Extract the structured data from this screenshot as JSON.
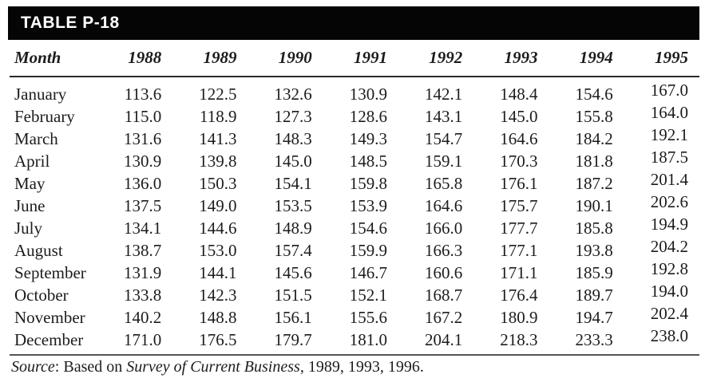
{
  "table": {
    "title": "TABLE P-18",
    "columns": [
      "Month",
      "1988",
      "1989",
      "1990",
      "1991",
      "1992",
      "1993",
      "1994",
      "1995"
    ],
    "rows": [
      [
        "January",
        "113.6",
        "122.5",
        "132.6",
        "130.9",
        "142.1",
        "148.4",
        "154.6",
        "167.0"
      ],
      [
        "February",
        "115.0",
        "118.9",
        "127.3",
        "128.6",
        "143.1",
        "145.0",
        "155.8",
        "164.0"
      ],
      [
        "March",
        "131.6",
        "141.3",
        "148.3",
        "149.3",
        "154.7",
        "164.6",
        "184.2",
        "192.1"
      ],
      [
        "April",
        "130.9",
        "139.8",
        "145.0",
        "148.5",
        "159.1",
        "170.3",
        "181.8",
        "187.5"
      ],
      [
        "May",
        "136.0",
        "150.3",
        "154.1",
        "159.8",
        "165.8",
        "176.1",
        "187.2",
        "201.4"
      ],
      [
        "June",
        "137.5",
        "149.0",
        "153.5",
        "153.9",
        "164.6",
        "175.7",
        "190.1",
        "202.6"
      ],
      [
        "July",
        "134.1",
        "144.6",
        "148.9",
        "154.6",
        "166.0",
        "177.7",
        "185.8",
        "194.9"
      ],
      [
        "August",
        "138.7",
        "153.0",
        "157.4",
        "159.9",
        "166.3",
        "177.1",
        "193.8",
        "204.2"
      ],
      [
        "September",
        "131.9",
        "144.1",
        "145.6",
        "146.7",
        "160.6",
        "171.1",
        "185.9",
        "192.8"
      ],
      [
        "October",
        "133.8",
        "142.3",
        "151.5",
        "152.1",
        "168.7",
        "176.4",
        "189.7",
        "194.0"
      ],
      [
        "November",
        "140.2",
        "148.8",
        "156.1",
        "155.6",
        "167.2",
        "180.9",
        "194.7",
        "202.4"
      ],
      [
        "December",
        "171.0",
        "176.5",
        "179.7",
        "181.0",
        "204.1",
        "218.3",
        "233.3",
        "238.0"
      ]
    ]
  },
  "source": {
    "word": "Source",
    "text1": ": Based on ",
    "italic": "Survey of Current Business",
    "text2": ", 1989, 1993, 1996."
  },
  "chart_data": {
    "type": "table",
    "title": "TABLE P-18",
    "categories": [
      "January",
      "February",
      "March",
      "April",
      "May",
      "June",
      "July",
      "August",
      "September",
      "October",
      "November",
      "December"
    ],
    "series": [
      {
        "name": "1988",
        "values": [
          113.6,
          115.0,
          131.6,
          130.9,
          136.0,
          137.5,
          134.1,
          138.7,
          131.9,
          133.8,
          140.2,
          171.0
        ]
      },
      {
        "name": "1989",
        "values": [
          122.5,
          118.9,
          141.3,
          139.8,
          150.3,
          149.0,
          144.6,
          153.0,
          144.1,
          142.3,
          148.8,
          176.5
        ]
      },
      {
        "name": "1990",
        "values": [
          132.6,
          127.3,
          148.3,
          145.0,
          154.1,
          153.5,
          148.9,
          157.4,
          145.6,
          151.5,
          156.1,
          179.7
        ]
      },
      {
        "name": "1991",
        "values": [
          130.9,
          128.6,
          149.3,
          148.5,
          159.8,
          153.9,
          154.6,
          159.9,
          146.7,
          152.1,
          155.6,
          181.0
        ]
      },
      {
        "name": "1992",
        "values": [
          142.1,
          143.1,
          154.7,
          159.1,
          165.8,
          164.6,
          166.0,
          166.3,
          160.6,
          168.7,
          167.2,
          204.1
        ]
      },
      {
        "name": "1993",
        "values": [
          148.4,
          145.0,
          164.6,
          170.3,
          176.1,
          175.7,
          177.7,
          177.1,
          171.1,
          176.4,
          180.9,
          218.3
        ]
      },
      {
        "name": "1994",
        "values": [
          154.6,
          155.8,
          184.2,
          181.8,
          187.2,
          190.1,
          185.8,
          193.8,
          185.9,
          189.7,
          194.7,
          233.3
        ]
      },
      {
        "name": "1995",
        "values": [
          167.0,
          164.0,
          192.1,
          187.5,
          201.4,
          202.6,
          194.9,
          204.2,
          192.8,
          194.0,
          202.4,
          238.0
        ]
      }
    ],
    "source_note": "Source: Based on Survey of Current Business, 1989, 1993, 1996."
  }
}
